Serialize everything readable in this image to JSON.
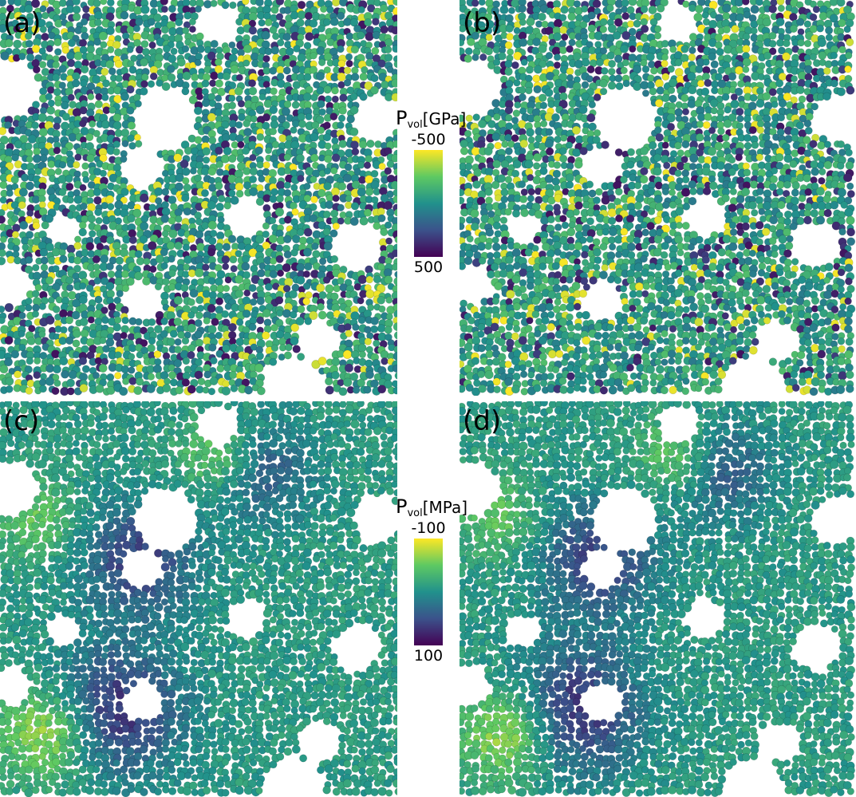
{
  "panels": [
    {
      "id": "a",
      "label": "(a)"
    },
    {
      "id": "b",
      "label": "(b)"
    },
    {
      "id": "c",
      "label": "(c)"
    },
    {
      "id": "d",
      "label": "(d)"
    }
  ],
  "colorbar_top": {
    "symbol": "P",
    "subscript": "vol",
    "unit": "[GPa]",
    "min_label": "-500",
    "max_label": "500"
  },
  "colorbar_bottom": {
    "symbol": "P",
    "subscript": "vol",
    "unit": "[MPa]",
    "min_label": "-100",
    "max_label": "100"
  },
  "colormap": [
    "#fde725",
    "#5ec962",
    "#21918c",
    "#3b528b",
    "#440154"
  ]
}
